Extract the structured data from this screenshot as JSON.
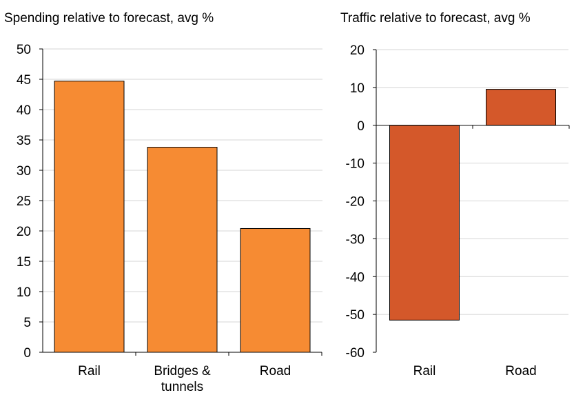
{
  "chart_data": [
    {
      "type": "bar",
      "title": "Spending relative to forecast, avg %",
      "categories": [
        "Rail",
        "Bridges & tunnels",
        "Road"
      ],
      "category_lines": [
        [
          "Rail"
        ],
        [
          "Bridges &",
          "tunnels"
        ],
        [
          "Road"
        ]
      ],
      "values": [
        44.7,
        33.8,
        20.4
      ],
      "ylim": [
        0,
        50
      ],
      "yticks": [
        "0",
        "5",
        "10",
        "15",
        "20",
        "25",
        "30",
        "35",
        "40",
        "45",
        "50"
      ],
      "grid": true,
      "bar_color": "#F68B33"
    },
    {
      "type": "bar",
      "title": "Traffic relative to forecast, avg %",
      "categories": [
        "Rail",
        "Road"
      ],
      "category_lines": [
        [
          "Rail"
        ],
        [
          "Road"
        ]
      ],
      "values": [
        -51.5,
        9.5
      ],
      "ylim": [
        -60,
        20
      ],
      "yticks": [
        "-60",
        "-50",
        "-40",
        "-30",
        "-20",
        "-10",
        "0",
        "10",
        "20"
      ],
      "grid": true,
      "bar_color": "#D4582A"
    }
  ]
}
